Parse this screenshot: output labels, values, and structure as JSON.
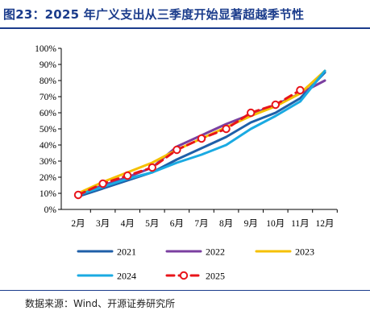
{
  "figure": {
    "title": "图23：2025 年广义支出从三季度开始显著超越季节性",
    "source": "数据来源：Wind、开源证券研究所"
  },
  "colors": {
    "title": "#1b3c8c",
    "s2021": "#1f5fa8",
    "s2022": "#7b3fa0",
    "s2023": "#f5c000",
    "s2024": "#1aaae2",
    "s2025": "#e8141a"
  },
  "chart_data": {
    "type": "line",
    "categories": [
      "2月",
      "3月",
      "4月",
      "5月",
      "6月",
      "7月",
      "8月",
      "9月",
      "10月",
      "11月",
      "12月"
    ],
    "ylim": [
      0,
      100
    ],
    "yticks": [
      "0%",
      "10%",
      "20%",
      "30%",
      "40%",
      "50%",
      "60%",
      "70%",
      "80%",
      "90%",
      "100%"
    ],
    "grid": false,
    "legend_position": "bottom",
    "series": [
      {
        "name": "2021",
        "values": [
          8,
          13,
          18,
          23,
          31,
          38,
          45,
          54,
          60,
          69,
          85
        ]
      },
      {
        "name": "2022",
        "values": [
          9,
          15,
          20,
          26,
          39,
          46,
          53,
          59,
          65,
          72,
          80
        ]
      },
      {
        "name": "2023",
        "values": [
          10,
          17,
          23,
          29,
          37,
          44,
          51,
          58,
          64,
          72,
          86
        ]
      },
      {
        "name": "2024",
        "values": [
          9,
          14,
          19,
          23,
          29,
          34,
          40,
          50,
          58,
          67,
          86
        ]
      },
      {
        "name": "2025",
        "values": [
          9,
          16,
          21,
          26,
          37,
          44,
          50,
          60,
          65,
          74,
          null
        ]
      }
    ]
  }
}
